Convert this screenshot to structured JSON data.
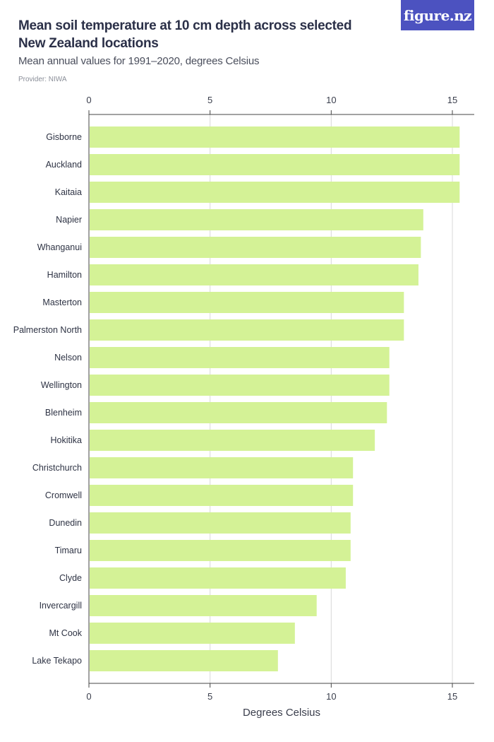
{
  "header": {
    "title": "Mean soil temperature at 10 cm depth across selected New Zealand locations",
    "subtitle": "Mean annual values for 1991–2020, degrees Celsius",
    "provider": "Provider: NIWA"
  },
  "logo": {
    "text": "figure.nz"
  },
  "colors": {
    "bar": "#d4f296",
    "grid": "#d8d8d8",
    "axis": "#444444",
    "logo_bg": "#4c52c0"
  },
  "chart_data": {
    "type": "bar",
    "orientation": "horizontal",
    "title": "Mean soil temperature at 10 cm depth across selected New Zealand locations",
    "subtitle": "Mean annual values for 1991–2020, degrees Celsius",
    "xlabel": "Degrees Celsius",
    "ylabel": "",
    "xlim": [
      0,
      16
    ],
    "ticks": [
      0,
      5,
      10,
      15
    ],
    "grid": true,
    "categories": [
      "Gisborne",
      "Auckland",
      "Kaitaia",
      "Napier",
      "Whanganui",
      "Hamilton",
      "Masterton",
      "Palmerston North",
      "Nelson",
      "Wellington",
      "Blenheim",
      "Hokitika",
      "Christchurch",
      "Cromwell",
      "Dunedin",
      "Timaru",
      "Clyde",
      "Invercargill",
      "Mt Cook",
      "Lake Tekapo"
    ],
    "values": [
      15.3,
      15.3,
      15.3,
      13.8,
      13.7,
      13.6,
      13.0,
      13.0,
      12.4,
      12.4,
      12.3,
      11.8,
      10.9,
      10.9,
      10.8,
      10.8,
      10.6,
      9.4,
      8.5,
      7.8
    ]
  }
}
